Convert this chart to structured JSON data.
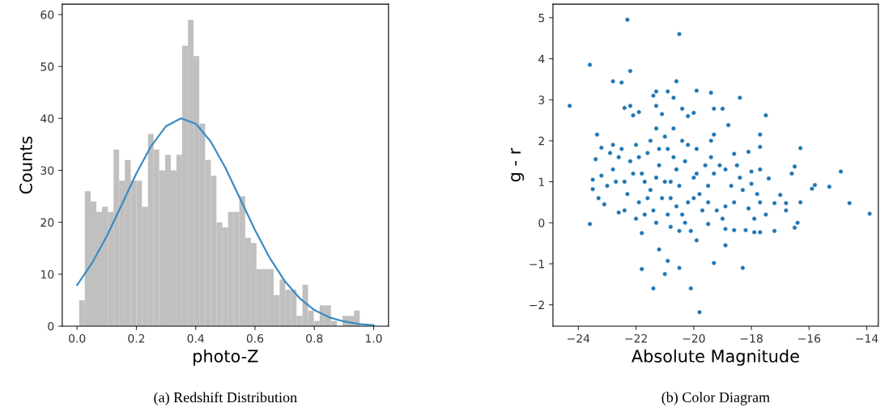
{
  "chart_data": [
    {
      "type": "histogram",
      "xlabel": "photo-Z",
      "ylabel": "Counts",
      "annotations": [
        "(a) Redshift Distribution"
      ],
      "color": "#c0c0c0",
      "bins": [
        0.007,
        0.026,
        0.046,
        0.065,
        0.084,
        0.104,
        0.123,
        0.142,
        0.161,
        0.181,
        0.2,
        0.219,
        0.239,
        0.258,
        0.277,
        0.297,
        0.316,
        0.335,
        0.354,
        0.374,
        0.393,
        0.412,
        0.432,
        0.451,
        0.47,
        0.49,
        0.509,
        0.528,
        0.547,
        0.567,
        0.586,
        0.605,
        0.625,
        0.644,
        0.663,
        0.683,
        0.702,
        0.721,
        0.74,
        0.76,
        0.779,
        0.798,
        0.818,
        0.837,
        0.856,
        0.876,
        0.895,
        0.914,
        0.933,
        0.953
      ],
      "values": [
        5,
        26,
        24,
        22,
        23,
        22,
        34,
        28,
        32,
        28,
        28,
        23,
        37,
        34,
        30,
        33,
        30,
        33,
        54,
        59,
        52,
        39,
        32,
        29,
        20,
        19,
        22,
        22,
        25,
        17,
        16,
        11,
        11,
        11,
        6,
        9,
        7,
        7,
        2,
        8,
        3,
        1,
        4,
        4,
        1,
        0,
        2,
        2,
        3
      ],
      "series": [
        {
          "type": "line",
          "color": "#3a8bc4",
          "x": [
            0,
            0.05,
            0.1,
            0.15,
            0.2,
            0.25,
            0.3,
            0.35,
            0.4,
            0.45,
            0.5,
            0.55,
            0.6,
            0.65,
            0.7,
            0.75,
            0.8,
            0.85,
            0.9,
            0.95,
            1.0
          ],
          "values": [
            7.9,
            12.1,
            17.3,
            23.3,
            29.4,
            34.7,
            38.5,
            40.0,
            39.0,
            35.6,
            30.5,
            24.5,
            18.5,
            13.1,
            8.7,
            5.4,
            3.1,
            1.7,
            0.9,
            0.4,
            0.2
          ]
        }
      ],
      "xlim": [
        -0.05,
        1.05
      ],
      "xticks": [
        {
          "value": 0,
          "label": "0.0"
        },
        0.2,
        0.4,
        0.6,
        0.8,
        {
          "value": 1,
          "label": "1.0"
        }
      ],
      "ylim": [
        0,
        62
      ],
      "yticks": [
        0,
        10,
        20,
        30,
        40,
        50,
        60
      ]
    },
    {
      "type": "scatter",
      "xlabel": "Absolute Magnitude",
      "ylabel": "g - r",
      "annotations": [
        "(b) Color Diagram"
      ],
      "marker": "circle",
      "series": [
        {
          "color": "#1f77b4",
          "x": [
            -24.3,
            -23.6,
            -22.3,
            -20.5,
            -22.2,
            -22.8,
            -22.5,
            -20.6,
            -19.9,
            -19.4,
            -21.3,
            -20.9,
            -21.4,
            -20.7,
            -18.4,
            -22.2,
            -22.4,
            -21.3,
            -20.4,
            -19.3,
            -19.0,
            -20.0,
            -21.1,
            -17.5,
            -21.9,
            -22.1,
            -20.2,
            -18.8,
            -23.6,
            -23.35,
            -21.8,
            -21.8,
            -21.4,
            -20.1,
            -19.8,
            -21.2,
            -21.0,
            -20.9,
            -20.5,
            -19.3,
            -18.3,
            -18.9,
            -19.9,
            -16.3,
            -16.5,
            -16.6,
            -15.8,
            -15.9,
            -15.3,
            -14.9,
            -14.6,
            -13.9,
            -16.3,
            -16.4,
            -16.5,
            -17.2,
            -17.7,
            -17.9,
            -18.2,
            -17.0,
            -16.8,
            -16.8,
            -17.2,
            -17.5,
            -17.4,
            -17.7,
            -17.7,
            -17.7,
            -18.1,
            -18.6,
            -19.3,
            -19.4,
            -18.6,
            -18.9,
            -19.5,
            -20.1,
            -20.5,
            -23.4,
            -23.5,
            -23.5,
            -23.3,
            -23.1,
            -23.2,
            -23.0,
            -23.2,
            -22.8,
            -22.6,
            -22.4,
            -22.0,
            -21.7,
            -21.3,
            -20.8,
            -20.3,
            -17.8,
            -17.7,
            -18.0,
            -18.3,
            -18.0,
            -18.5,
            -18.4,
            -18.7,
            -18.9,
            -19.1,
            -19.3,
            -18.6,
            -18.9,
            -19.2,
            -19.5,
            -19.0,
            -17.9,
            -18.1,
            -22.5,
            -22.2,
            -22.0,
            -21.8,
            -21.6,
            -21.5,
            -21.3,
            -21.2,
            -21.0,
            -20.9,
            -20.8,
            -20.7,
            -20.6,
            -20.5,
            -20.4,
            -20.3,
            -20.2,
            -20.0,
            -19.9,
            -19.8,
            -19.6,
            -19.5,
            -22.8,
            -22.6,
            -22.4,
            -22.3,
            -22.1,
            -21.9,
            -21.7,
            -21.4,
            -21.1,
            -20.9,
            -20.6,
            -20.2,
            -19.9,
            -19.7,
            -21.5,
            -21.0,
            -22.7,
            -21.9,
            -20.0,
            -21.3,
            -20.7,
            -19.4,
            -22.9,
            -21.6,
            -20.4,
            -20.8,
            -21.2
          ],
          "values": [
            2.85,
            3.85,
            4.95,
            4.6,
            3.7,
            3.45,
            3.42,
            3.45,
            3.22,
            3.17,
            3.2,
            3.2,
            3.1,
            3.05,
            3.05,
            2.85,
            2.8,
            2.85,
            2.78,
            2.78,
            2.78,
            2.68,
            2.65,
            2.62,
            2.7,
            2.62,
            2.6,
            2.38,
            -0.03,
            2.15,
            -0.25,
            -1.13,
            -1.6,
            -1.6,
            -2.18,
            -0.65,
            -1.25,
            -0.93,
            -1.1,
            -0.98,
            -1.1,
            -0.55,
            -0.43,
            1.82,
            1.37,
            1.2,
            0.92,
            0.83,
            0.88,
            1.25,
            0.48,
            0.22,
            0.5,
            0.0,
            -0.12,
            -0.2,
            -0.23,
            -0.23,
            -0.18,
            0.68,
            0.48,
            0.3,
            0.48,
            0.2,
            1.08,
            1.3,
            1.85,
            2.15,
            1.73,
            1.68,
            2.15,
            2.0,
            -0.18,
            -0.15,
            -0.03,
            -0.2,
            -0.2,
            1.55,
            1.05,
            0.82,
            0.6,
            0.45,
            1.15,
            0.9,
            1.83,
            1.9,
            0.25,
            0.3,
            0.1,
            0.2,
            0.0,
            -0.1,
            0.0,
            0.7,
            0.5,
            0.95,
            0.8,
            1.25,
            1.4,
            1.1,
            0.9,
            1.3,
            1.4,
            1.2,
            0.5,
            0.4,
            0.3,
            0.5,
            0.1,
            0.1,
            0.35,
            1.8,
            1.5,
            1.9,
            1.2,
            1.7,
            0.8,
            2.3,
            1.4,
            1.0,
            1.8,
            0.6,
            2.3,
            1.3,
            0.9,
            2.0,
            1.5,
            0.5,
            1.1,
            1.8,
            0.7,
            1.4,
            0.9,
            1.3,
            1.6,
            1.0,
            0.7,
            1.2,
            0.5,
            1.0,
            0.3,
            0.6,
            0.2,
            0.4,
            1.9,
            1.2,
            0.3,
            2.0,
            2.1,
            1.0,
            1.6,
            0.6,
            1.1,
            1.6,
            1.6,
            1.7,
            0.6,
            0.2,
            1.0,
            1.8
          ]
        }
      ],
      "xlim": [
        -24.88,
        -13.6
      ],
      "xticks": [
        {
          "value": -24,
          "label": "−24"
        },
        {
          "value": -22,
          "label": "−22"
        },
        {
          "value": -20,
          "label": "−20"
        },
        {
          "value": -18,
          "label": "−18"
        },
        {
          "value": -16,
          "label": "−16"
        },
        {
          "value": -14,
          "label": "−14"
        }
      ],
      "ylim": [
        -2.52,
        5.33
      ],
      "yticks": [
        {
          "value": -2,
          "label": "−2"
        },
        {
          "value": -1,
          "label": "−1"
        },
        0,
        1,
        2,
        3,
        4,
        5
      ]
    }
  ]
}
